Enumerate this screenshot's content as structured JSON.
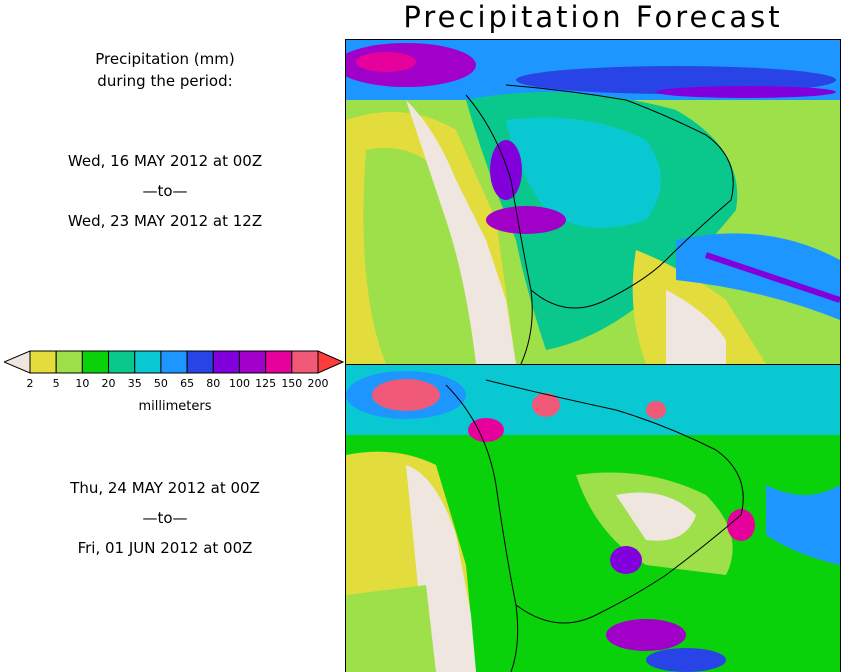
{
  "title": "Precipitation Forecast",
  "period_header": {
    "line1": "Precipitation (mm)",
    "line2": "during the period:"
  },
  "period1": {
    "start": "Wed, 16 MAY 2012 at 00Z",
    "sep": "—to—",
    "end": "Wed, 23 MAY 2012 at 12Z"
  },
  "period2": {
    "start": "Thu, 24 MAY 2012 at 00Z",
    "sep": "—to—",
    "end": "Fri, 01 JUN 2012 at 00Z"
  },
  "legend": {
    "units": "millimeters",
    "labels": [
      "2",
      "5",
      "10",
      "20",
      "35",
      "50",
      "65",
      "80",
      "100",
      "125",
      "150",
      "200"
    ],
    "colors": [
      "#f0e6e0",
      "#e2dc3c",
      "#9ee04a",
      "#0ad20a",
      "#0ac88c",
      "#0ac8d2",
      "#1e96ff",
      "#2844e6",
      "#8200dc",
      "#a000c8",
      "#e6009c",
      "#f05a78",
      "#ff3c3c"
    ]
  }
}
